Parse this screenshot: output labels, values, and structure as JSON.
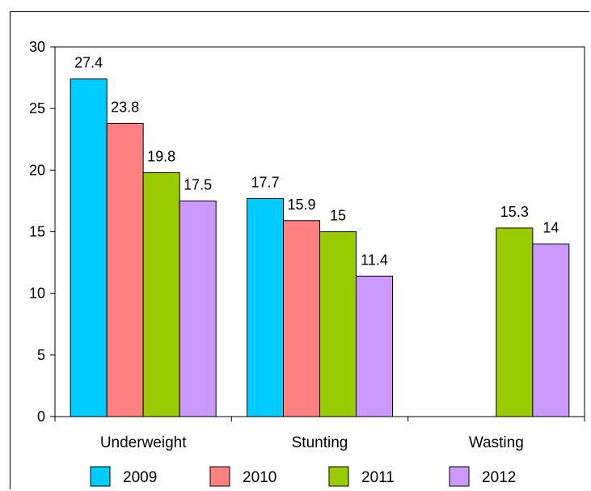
{
  "chart_data": {
    "type": "bar",
    "categories": [
      "Underweight",
      "Stunting",
      "Wasting"
    ],
    "series": [
      {
        "name": "2009",
        "values": [
          27.4,
          17.7,
          null
        ],
        "color": "#00ccff"
      },
      {
        "name": "2010",
        "values": [
          23.8,
          15.9,
          null
        ],
        "color": "#ff8080"
      },
      {
        "name": "2011",
        "values": [
          19.8,
          15,
          15.3
        ],
        "color": "#99cc00"
      },
      {
        "name": "2012",
        "values": [
          17.5,
          11.4,
          14
        ],
        "color": "#cc99ff"
      }
    ],
    "ylim": [
      0,
      30
    ],
    "yticks": [
      0,
      5,
      10,
      15,
      20,
      25,
      30
    ],
    "grid": false,
    "legend": "bottom"
  }
}
